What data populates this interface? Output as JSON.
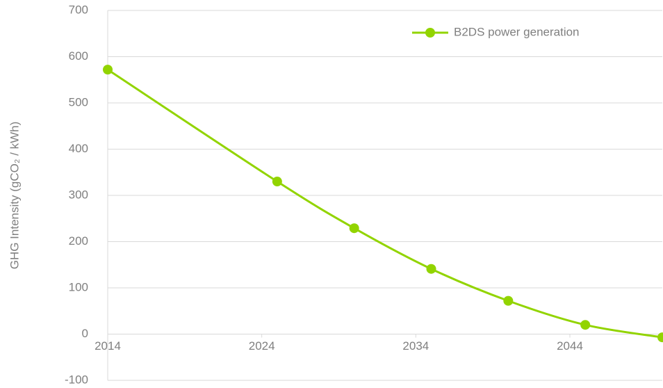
{
  "chart_data": {
    "type": "line",
    "ylabel": "GHG Intensity (gCO₂ / kWh)",
    "x": [
      2014,
      2025,
      2030,
      2035,
      2040,
      2045,
      2050
    ],
    "series": [
      {
        "name": "B2DS power generation",
        "color": "#92d400",
        "values": [
          572,
          330,
          229,
          141,
          72,
          20,
          -7
        ]
      }
    ],
    "xlim": [
      2014,
      2050
    ],
    "xticks": [
      2014,
      2024,
      2034,
      2044
    ],
    "ylim": [
      -100,
      700
    ],
    "yticks": [
      -100,
      0,
      100,
      200,
      300,
      400,
      500,
      600,
      700
    ],
    "grid": true,
    "legend": "top-right"
  }
}
